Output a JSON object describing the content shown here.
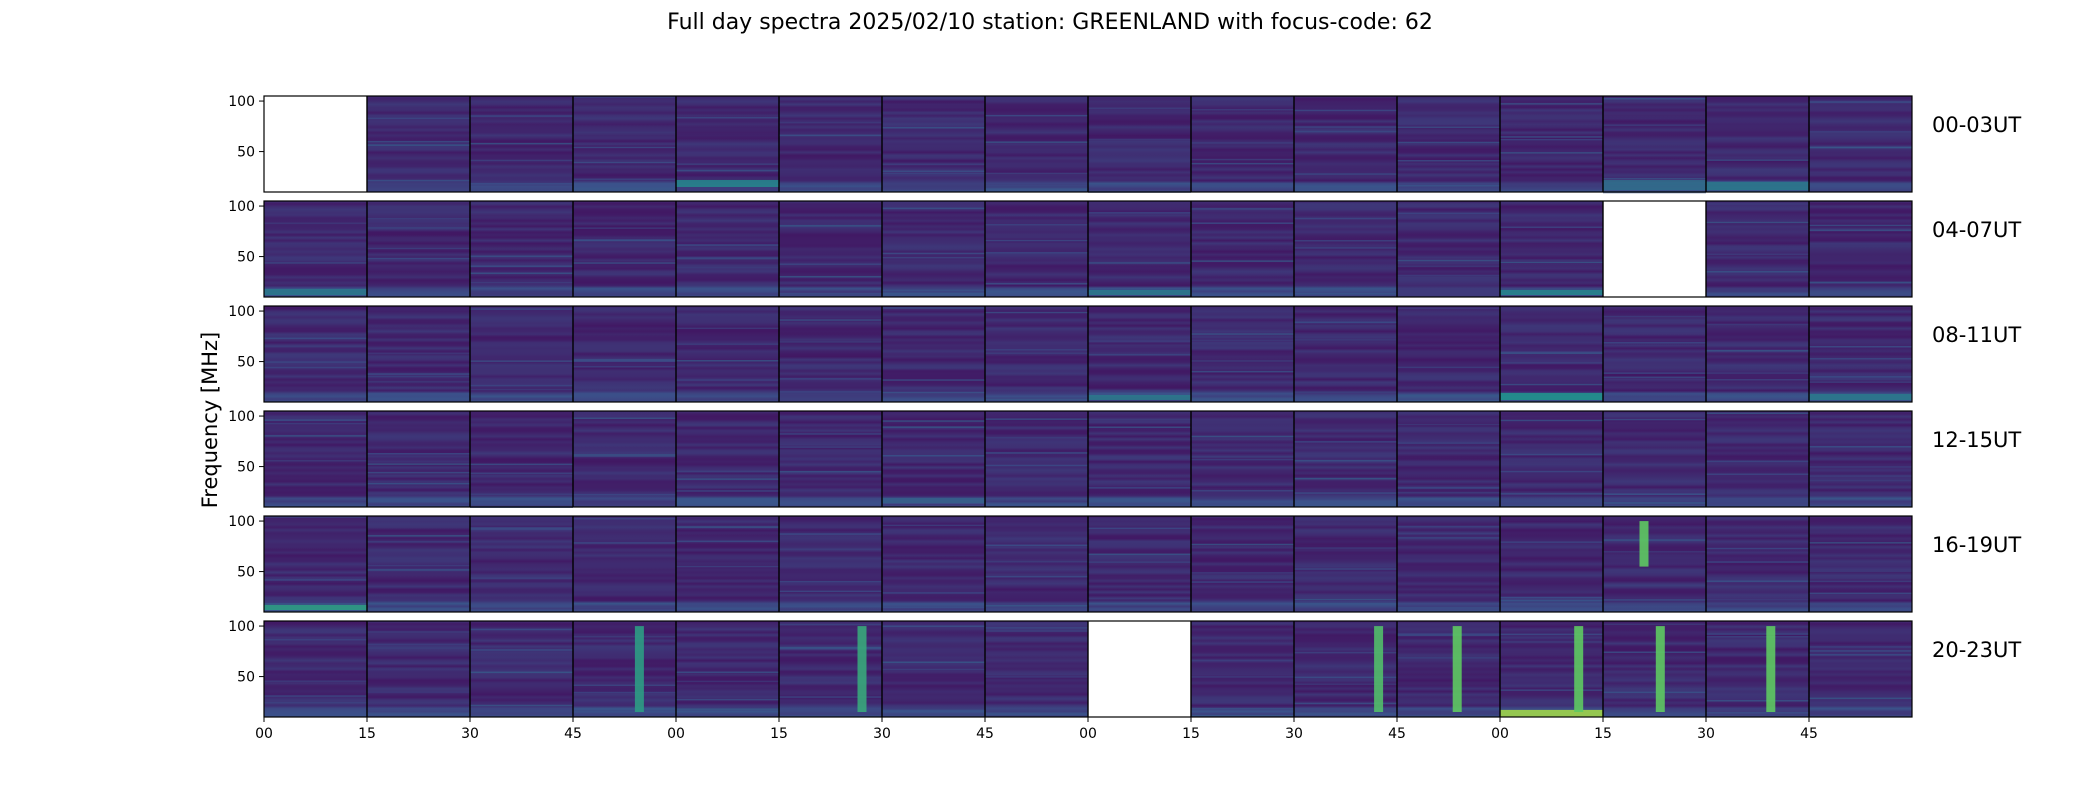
{
  "chart_data": {
    "type": "heatmap",
    "title": "Full day spectra 2025/02/10 station: GREENLAND with focus-code: 62",
    "ylabel": "Frequency [MHz]",
    "xlabel": "",
    "colormap": "viridis",
    "colors": {
      "low": "#440154",
      "mid": "#31688e",
      "high": "#fde725"
    },
    "ylim": [
      10,
      105
    ],
    "yticks": [
      50,
      100
    ],
    "xtick_labels": [
      "00",
      "15",
      "30",
      "45",
      "00",
      "15",
      "30",
      "45",
      "00",
      "15",
      "30",
      "45",
      "00",
      "15",
      "30",
      "45"
    ],
    "panels_per_row": 16,
    "panel_minutes": 15,
    "rows": [
      {
        "label": "00-03UT",
        "missing_panels": [
          0
        ],
        "bright_bands": [
          {
            "panel": 4,
            "freq": [
              15,
              22
            ],
            "level": 0.45
          },
          {
            "panel": 13,
            "freq": [
              12,
              22
            ],
            "level": 0.35
          },
          {
            "panel": 14,
            "freq": [
              12,
              20
            ],
            "level": 0.4
          }
        ]
      },
      {
        "label": "04-07UT",
        "missing_panels": [
          13
        ],
        "bright_bands": [
          {
            "panel": 0,
            "freq": [
              12,
              18
            ],
            "level": 0.4
          },
          {
            "panel": 8,
            "freq": [
              12,
              17
            ],
            "level": 0.4
          },
          {
            "panel": 12,
            "freq": [
              12,
              17
            ],
            "level": 0.45
          }
        ]
      },
      {
        "label": "08-11UT",
        "missing_panels": [],
        "bright_bands": [
          {
            "panel": 8,
            "freq": [
              12,
              17
            ],
            "level": 0.4
          },
          {
            "panel": 12,
            "freq": [
              12,
              19
            ],
            "level": 0.5
          },
          {
            "panel": 15,
            "freq": [
              12,
              18
            ],
            "level": 0.4
          }
        ]
      },
      {
        "label": "12-15UT",
        "missing_panels": [],
        "bright_bands": [
          {
            "panel": 6,
            "freq": [
              14,
              19
            ],
            "level": 0.3
          }
        ]
      },
      {
        "label": "16-19UT",
        "missing_panels": [],
        "bright_bands": [
          {
            "panel": 0,
            "freq": [
              12,
              17
            ],
            "level": 0.55
          },
          {
            "panel": 13,
            "freq": [
              55,
              100
            ],
            "level": 0.75
          }
        ]
      },
      {
        "label": "20-23UT",
        "missing_panels": [
          8
        ],
        "bright_bands": [
          {
            "panel": 12,
            "freq": [
              10,
              17
            ],
            "level": 0.85
          },
          {
            "panel": 3,
            "freq": [
              15,
              100
            ],
            "level": 0.55
          },
          {
            "panel": 5,
            "freq": [
              15,
              100
            ],
            "level": 0.6
          },
          {
            "panel": 10,
            "freq": [
              15,
              100
            ],
            "level": 0.7
          },
          {
            "panel": 11,
            "freq": [
              15,
              100
            ],
            "level": 0.75
          },
          {
            "panel": 12,
            "freq": [
              15,
              100
            ],
            "level": 0.75
          },
          {
            "panel": 13,
            "freq": [
              15,
              100
            ],
            "level": 0.75
          },
          {
            "panel": 14,
            "freq": [
              15,
              100
            ],
            "level": 0.75
          }
        ]
      }
    ]
  }
}
